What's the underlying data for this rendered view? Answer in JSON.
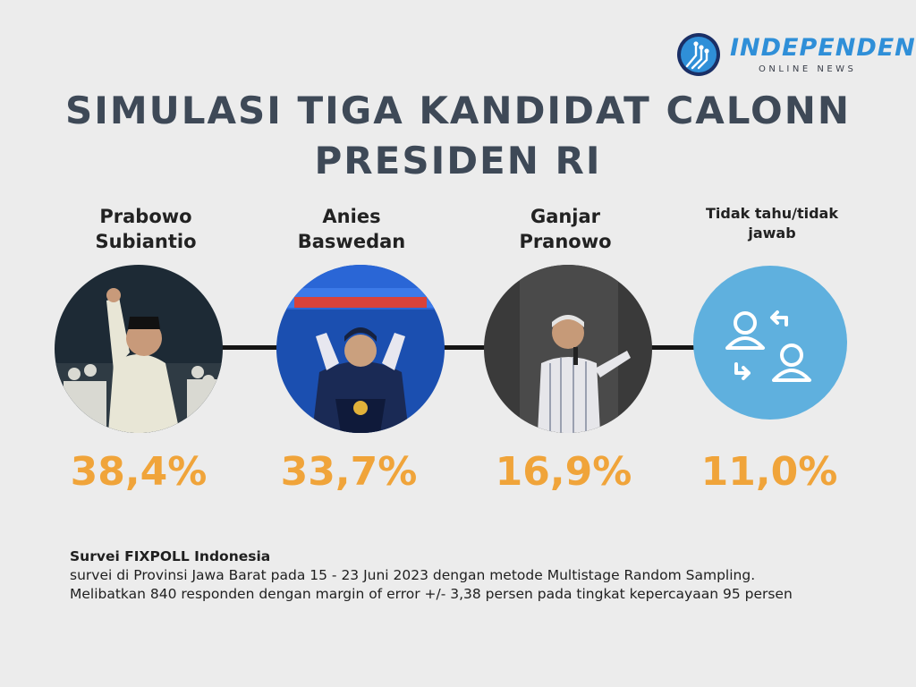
{
  "brand": {
    "name": "INDEPENDEN",
    "tagline": "ONLINE NEWS",
    "color": "#2f8fd8"
  },
  "title": {
    "line1": "SIMULASI TIGA KANDIDAT CALONN",
    "line2": "PRESIDEN RI"
  },
  "candidates": [
    {
      "name_line1": "Prabowo",
      "name_line2": "Subiantio",
      "percent": "38,4%"
    },
    {
      "name_line1": "Anies",
      "name_line2": "Baswedan",
      "percent": "33,7%"
    },
    {
      "name_line1": "Ganjar",
      "name_line2": "Pranowo",
      "percent": "16,9%"
    },
    {
      "name_line1": "Tidak tahu/tidak",
      "name_line2": "jawab",
      "percent": "11,0%",
      "icon": "users-swap-icon"
    }
  ],
  "colors": {
    "percent": "#f0a43a",
    "title": "#3e4957",
    "unknown_circle": "#5fb0de"
  },
  "note": {
    "source": "Survei FIXPOLL Indonesia",
    "line1": " survei di Provinsi Jawa Barat pada 15 - 23 Juni 2023 dengan metode Multistage Random Sampling.",
    "line2": "Melibatkan 840 responden dengan margin of error +/- 3,38 persen pada tingkat kepercayaan 95 persen"
  }
}
